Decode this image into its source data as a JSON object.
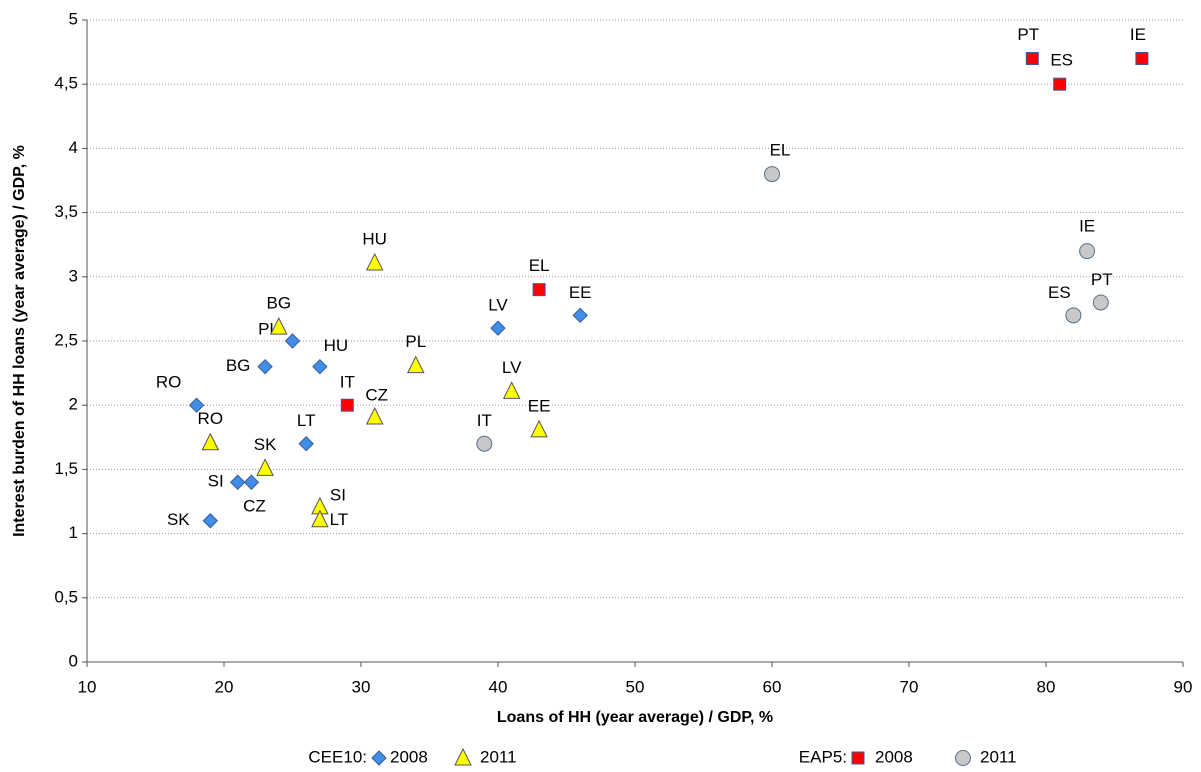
{
  "chart_data": {
    "type": "scatter",
    "x_label": "Loans of HH (year average) / GDP, %",
    "y_label": "Interest burden of HH loans (year average) / GDP, %",
    "xlim": [
      10,
      90
    ],
    "xticks": [
      10,
      20,
      30,
      40,
      50,
      60,
      70,
      80,
      90
    ],
    "ylim": [
      0,
      5
    ],
    "yticks": [
      0,
      {
        "value": 0.5,
        "label": "0,5"
      },
      1,
      {
        "value": 1.5,
        "label": "1,5"
      },
      2,
      {
        "value": 2.5,
        "label": "2,5"
      },
      3,
      {
        "value": 3.5,
        "label": "3,5"
      },
      4,
      {
        "value": 4.5,
        "label": "4,5"
      },
      5
    ],
    "grid": true,
    "legend_titles": [
      "CEE10:",
      "EAP5:"
    ],
    "series": [
      {
        "name": "2008",
        "marker": "diamond",
        "color": "#3f8ee8",
        "labels": [
          "RO",
          "BG",
          "PL",
          "HU",
          "LT",
          "SI",
          "CZ",
          "SK",
          "LV",
          "EE"
        ],
        "x": [
          18,
          23,
          25,
          27,
          26,
          21,
          22,
          19,
          40,
          46
        ],
        "values": [
          2.0,
          2.3,
          2.5,
          2.3,
          1.7,
          1.4,
          1.4,
          1.1,
          2.6,
          2.7
        ]
      },
      {
        "name": "2011",
        "marker": "triangle",
        "color": "#ffff00",
        "labels": [
          "HU",
          "BG",
          "PL",
          "CZ",
          "LV",
          "EE",
          "RO",
          "SK",
          "SI",
          "LT"
        ],
        "x": [
          31,
          24,
          34,
          31,
          41,
          43,
          19,
          23,
          27,
          27
        ],
        "values": [
          3.1,
          2.6,
          2.3,
          1.9,
          2.1,
          1.8,
          1.7,
          1.5,
          1.2,
          1.1
        ]
      },
      {
        "name": "2008",
        "marker": "square",
        "color": "#ff0000",
        "labels": [
          "PT",
          "ES",
          "IE",
          "EL",
          "IT"
        ],
        "x": [
          79,
          81,
          87,
          43,
          29
        ],
        "values": [
          4.7,
          4.5,
          4.7,
          2.9,
          2.0
        ]
      },
      {
        "name": "2011",
        "marker": "circle",
        "color": "#c8c8c8",
        "labels": [
          "EL",
          "IE",
          "ES",
          "PT",
          "IT"
        ],
        "x": [
          60,
          83,
          82,
          84,
          39
        ],
        "values": [
          3.8,
          3.2,
          2.7,
          2.8,
          1.7
        ]
      }
    ]
  }
}
